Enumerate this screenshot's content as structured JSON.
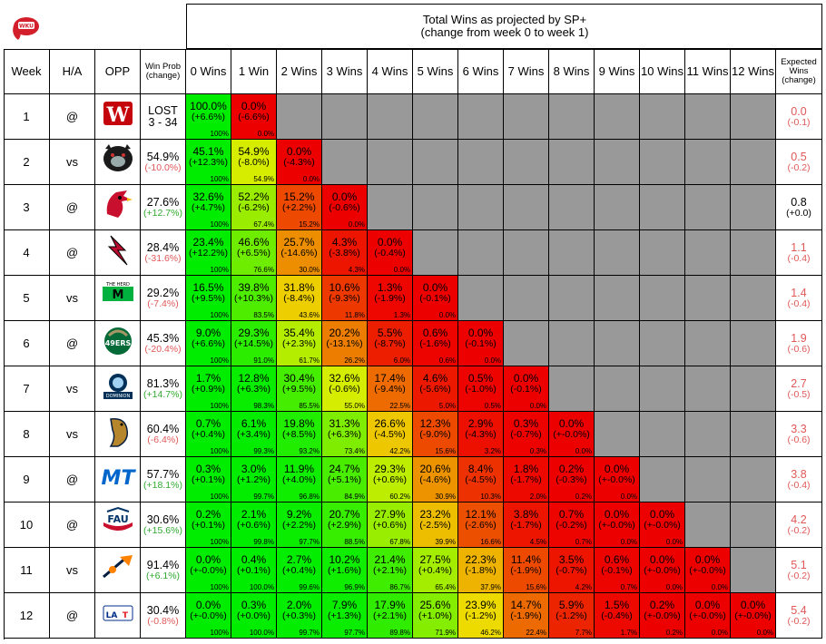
{
  "title": {
    "line1": "Total Wins as projected by SP+",
    "line2": "(change from week 0 to week 1)"
  },
  "headers": {
    "week": "Week",
    "ha": "H/A",
    "opp": "OPP",
    "winprob": "Win Prob (change)",
    "expected": "Expected Wins (change)",
    "wins": [
      "0 Wins",
      "1 Win",
      "2 Wins",
      "3 Wins",
      "4 Wins",
      "5 Wins",
      "6 Wins",
      "7 Wins",
      "8 Wins",
      "9 Wins",
      "10 Wins",
      "11 Wins",
      "12 Wins"
    ]
  },
  "colors": {
    "high": "#00ff00",
    "mid": "#ffff00",
    "low": "#ff0000",
    "empty": "#999999",
    "positive_text": "#2eaa2e",
    "negative_text": "#e05858"
  },
  "chart_data": {
    "type": "table",
    "title": "Total Wins as projected by SP+ (change from week 0 to week 1)",
    "rows": [
      {
        "week": "1",
        "ha": "@",
        "opp_logo": "wisconsin-logo",
        "win_prob": "LOST",
        "win_prob_sub": "3 - 34",
        "expected": "0.0",
        "expected_change": "(-0.1)",
        "cells": [
          {
            "p": "100.0%",
            "c": "(+6.6%)",
            "cum": "100%"
          },
          {
            "p": "0.0%",
            "c": "(-6.6%)",
            "cum": "0.0%"
          }
        ]
      },
      {
        "week": "2",
        "ha": "vs",
        "opp_logo": "maine-logo",
        "win_prob": "54.9%",
        "win_prob_sub": "(-10.0%)",
        "expected": "0.5",
        "expected_change": "(-0.2)",
        "cells": [
          {
            "p": "45.1%",
            "c": "(+12.3%)",
            "cum": "100%"
          },
          {
            "p": "54.9%",
            "c": "(-8.0%)",
            "cum": "54.9%"
          },
          {
            "p": "0.0%",
            "c": "(-4.3%)",
            "cum": "0.0%"
          }
        ]
      },
      {
        "week": "3",
        "ha": "@",
        "opp_logo": "louisville-logo",
        "win_prob": "27.6%",
        "win_prob_sub": "(+12.7%)",
        "expected": "0.8",
        "expected_change": "(+0.0)",
        "cells": [
          {
            "p": "32.6%",
            "c": "(+4.7%)",
            "cum": "100%"
          },
          {
            "p": "52.2%",
            "c": "(-6.2%)",
            "cum": "67.4%"
          },
          {
            "p": "15.2%",
            "c": "(+2.2%)",
            "cum": "15.2%"
          },
          {
            "p": "0.0%",
            "c": "(-0.6%)",
            "cum": "0.0%"
          }
        ]
      },
      {
        "week": "4",
        "ha": "@",
        "opp_logo": "ball-state-logo",
        "win_prob": "28.4%",
        "win_prob_sub": "(-31.6%)",
        "expected": "1.1",
        "expected_change": "(-0.4)",
        "cells": [
          {
            "p": "23.4%",
            "c": "(+12.2%)",
            "cum": "100%"
          },
          {
            "p": "46.6%",
            "c": "(+6.5%)",
            "cum": "76.6%"
          },
          {
            "p": "25.7%",
            "c": "(-14.6%)",
            "cum": "30.0%"
          },
          {
            "p": "4.3%",
            "c": "(-3.8%)",
            "cum": "4.3%"
          },
          {
            "p": "0.0%",
            "c": "(-0.4%)",
            "cum": "0.0%"
          }
        ]
      },
      {
        "week": "5",
        "ha": "vs",
        "opp_logo": "marshall-logo",
        "win_prob": "29.2%",
        "win_prob_sub": "(-7.4%)",
        "expected": "1.4",
        "expected_change": "(-0.4)",
        "cells": [
          {
            "p": "16.5%",
            "c": "(+9.5%)",
            "cum": "100%"
          },
          {
            "p": "39.8%",
            "c": "(+10.3%)",
            "cum": "83.5%"
          },
          {
            "p": "31.8%",
            "c": "(-8.4%)",
            "cum": "43.6%"
          },
          {
            "p": "10.6%",
            "c": "(-9.3%)",
            "cum": "11.8%"
          },
          {
            "p": "1.3%",
            "c": "(-1.9%)",
            "cum": "1.3%"
          },
          {
            "p": "0.0%",
            "c": "(-0.1%)",
            "cum": "0.0%"
          }
        ]
      },
      {
        "week": "6",
        "ha": "@",
        "opp_logo": "charlotte-logo",
        "win_prob": "45.3%",
        "win_prob_sub": "(-20.4%)",
        "expected": "1.9",
        "expected_change": "(-0.6)",
        "cells": [
          {
            "p": "9.0%",
            "c": "(+6.6%)",
            "cum": "100%"
          },
          {
            "p": "29.3%",
            "c": "(+14.5%)",
            "cum": "91.0%"
          },
          {
            "p": "35.4%",
            "c": "(+2.3%)",
            "cum": "61.7%"
          },
          {
            "p": "20.2%",
            "c": "(-13.1%)",
            "cum": "26.2%"
          },
          {
            "p": "5.5%",
            "c": "(-8.7%)",
            "cum": "6.0%"
          },
          {
            "p": "0.6%",
            "c": "(-1.6%)",
            "cum": "0.6%"
          },
          {
            "p": "0.0%",
            "c": "(-0.1%)",
            "cum": "0.0%"
          }
        ]
      },
      {
        "week": "7",
        "ha": "vs",
        "opp_logo": "old-dominion-logo",
        "win_prob": "81.3%",
        "win_prob_sub": "(+14.7%)",
        "expected": "2.7",
        "expected_change": "(-0.5)",
        "cells": [
          {
            "p": "1.7%",
            "c": "(+0.9%)",
            "cum": "100%"
          },
          {
            "p": "12.8%",
            "c": "(+6.3%)",
            "cum": "98.3%"
          },
          {
            "p": "30.4%",
            "c": "(+9.5%)",
            "cum": "85.5%"
          },
          {
            "p": "32.6%",
            "c": "(-0.6%)",
            "cum": "55.0%"
          },
          {
            "p": "17.4%",
            "c": "(-9.4%)",
            "cum": "22.5%"
          },
          {
            "p": "4.6%",
            "c": "(-5.6%)",
            "cum": "5.0%"
          },
          {
            "p": "0.5%",
            "c": "(-1.0%)",
            "cum": "0.5%"
          },
          {
            "p": "0.0%",
            "c": "(-0.1%)",
            "cum": "0.0%"
          }
        ]
      },
      {
        "week": "8",
        "ha": "vs",
        "opp_logo": "fiu-logo",
        "win_prob": "60.4%",
        "win_prob_sub": "(-6.4%)",
        "expected": "3.3",
        "expected_change": "(-0.6)",
        "cells": [
          {
            "p": "0.7%",
            "c": "(+0.4%)",
            "cum": "100%"
          },
          {
            "p": "6.1%",
            "c": "(+3.4%)",
            "cum": "99.3%"
          },
          {
            "p": "19.8%",
            "c": "(+8.5%)",
            "cum": "93.2%"
          },
          {
            "p": "31.3%",
            "c": "(+6.3%)",
            "cum": "73.4%"
          },
          {
            "p": "26.6%",
            "c": "(-4.5%)",
            "cum": "42.2%"
          },
          {
            "p": "12.3%",
            "c": "(-9.0%)",
            "cum": "15.6%"
          },
          {
            "p": "2.9%",
            "c": "(-4.3%)",
            "cum": "3.2%"
          },
          {
            "p": "0.3%",
            "c": "(-0.7%)",
            "cum": "0.3%"
          },
          {
            "p": "0.0%",
            "c": "(+-0.0%)",
            "cum": "0.0%"
          }
        ]
      },
      {
        "week": "9",
        "ha": "@",
        "opp_logo": "middle-tennessee-logo",
        "win_prob": "57.7%",
        "win_prob_sub": "(+18.1%)",
        "expected": "3.8",
        "expected_change": "(-0.4)",
        "cells": [
          {
            "p": "0.3%",
            "c": "(+0.1%)",
            "cum": "100%"
          },
          {
            "p": "3.0%",
            "c": "(+1.2%)",
            "cum": "99.7%"
          },
          {
            "p": "11.9%",
            "c": "(+4.0%)",
            "cum": "96.8%"
          },
          {
            "p": "24.7%",
            "c": "(+5.1%)",
            "cum": "84.9%"
          },
          {
            "p": "29.3%",
            "c": "(+0.6%)",
            "cum": "60.2%"
          },
          {
            "p": "20.6%",
            "c": "(-4.6%)",
            "cum": "30.9%"
          },
          {
            "p": "8.4%",
            "c": "(-4.5%)",
            "cum": "10.3%"
          },
          {
            "p": "1.8%",
            "c": "(-1.7%)",
            "cum": "2.0%"
          },
          {
            "p": "0.2%",
            "c": "(-0.3%)",
            "cum": "0.2%"
          },
          {
            "p": "0.0%",
            "c": "(+-0.0%)",
            "cum": "0.0%"
          }
        ]
      },
      {
        "week": "10",
        "ha": "@",
        "opp_logo": "fau-logo",
        "win_prob": "30.6%",
        "win_prob_sub": "(+15.6%)",
        "expected": "4.2",
        "expected_change": "(-0.2)",
        "cells": [
          {
            "p": "0.2%",
            "c": "(+0.1%)",
            "cum": "100%"
          },
          {
            "p": "2.1%",
            "c": "(+0.6%)",
            "cum": "99.8%"
          },
          {
            "p": "9.2%",
            "c": "(+2.2%)",
            "cum": "97.7%"
          },
          {
            "p": "20.7%",
            "c": "(+2.9%)",
            "cum": "88.5%"
          },
          {
            "p": "27.9%",
            "c": "(+0.6%)",
            "cum": "67.8%"
          },
          {
            "p": "23.2%",
            "c": "(-2.5%)",
            "cum": "39.9%"
          },
          {
            "p": "12.1%",
            "c": "(-2.6%)",
            "cum": "16.6%"
          },
          {
            "p": "3.8%",
            "c": "(-1.7%)",
            "cum": "4.5%"
          },
          {
            "p": "0.7%",
            "c": "(-0.2%)",
            "cum": "0.7%"
          },
          {
            "p": "0.0%",
            "c": "(+-0.0%)",
            "cum": "0.0%"
          },
          {
            "p": "0.0%",
            "c": "(+-0.0%)",
            "cum": "0.0%"
          }
        ]
      },
      {
        "week": "11",
        "ha": "vs",
        "opp_logo": "utep-logo",
        "win_prob": "91.4%",
        "win_prob_sub": "(+6.1%)",
        "expected": "5.1",
        "expected_change": "(-0.2)",
        "cells": [
          {
            "p": "0.0%",
            "c": "(+-0.0%)",
            "cum": "100%"
          },
          {
            "p": "0.4%",
            "c": "(+0.1%)",
            "cum": "100.0%"
          },
          {
            "p": "2.7%",
            "c": "(+0.4%)",
            "cum": "99.6%"
          },
          {
            "p": "10.2%",
            "c": "(+1.6%)",
            "cum": "96.9%"
          },
          {
            "p": "21.4%",
            "c": "(+2.1%)",
            "cum": "86.7%"
          },
          {
            "p": "27.5%",
            "c": "(+0.4%)",
            "cum": "65.4%"
          },
          {
            "p": "22.3%",
            "c": "(-1.8%)",
            "cum": "37.9%"
          },
          {
            "p": "11.4%",
            "c": "(-1.9%)",
            "cum": "15.6%"
          },
          {
            "p": "3.5%",
            "c": "(-0.7%)",
            "cum": "4.2%"
          },
          {
            "p": "0.6%",
            "c": "(-0.1%)",
            "cum": "0.7%"
          },
          {
            "p": "0.0%",
            "c": "(+-0.0%)",
            "cum": "0.0%"
          },
          {
            "p": "0.0%",
            "c": "(+-0.0%)",
            "cum": "0.0%"
          }
        ]
      },
      {
        "week": "12",
        "ha": "@",
        "opp_logo": "louisiana-tech-logo",
        "win_prob": "30.4%",
        "win_prob_sub": "(-0.8%)",
        "expected": "5.4",
        "expected_change": "(-0.2)",
        "cells": [
          {
            "p": "0.0%",
            "c": "(+-0.0%)",
            "cum": "100%"
          },
          {
            "p": "0.3%",
            "c": "(+0.0%)",
            "cum": "100.0%"
          },
          {
            "p": "2.0%",
            "c": "(+0.3%)",
            "cum": "99.7%"
          },
          {
            "p": "7.9%",
            "c": "(+1.3%)",
            "cum": "97.7%"
          },
          {
            "p": "17.9%",
            "c": "(+2.1%)",
            "cum": "89.8%"
          },
          {
            "p": "25.6%",
            "c": "(+1.0%)",
            "cum": "71.9%"
          },
          {
            "p": "23.9%",
            "c": "(-1.2%)",
            "cum": "46.2%"
          },
          {
            "p": "14.7%",
            "c": "(-1.9%)",
            "cum": "22.4%"
          },
          {
            "p": "5.9%",
            "c": "(-1.2%)",
            "cum": "7.7%"
          },
          {
            "p": "1.5%",
            "c": "(-0.4%)",
            "cum": "1.7%"
          },
          {
            "p": "0.2%",
            "c": "(+-0.0%)",
            "cum": "0.2%"
          },
          {
            "p": "0.0%",
            "c": "(+-0.0%)",
            "cum": "0.0%"
          },
          {
            "p": "0.0%",
            "c": "(+-0.0%)",
            "cum": "0.0%"
          }
        ]
      }
    ]
  }
}
